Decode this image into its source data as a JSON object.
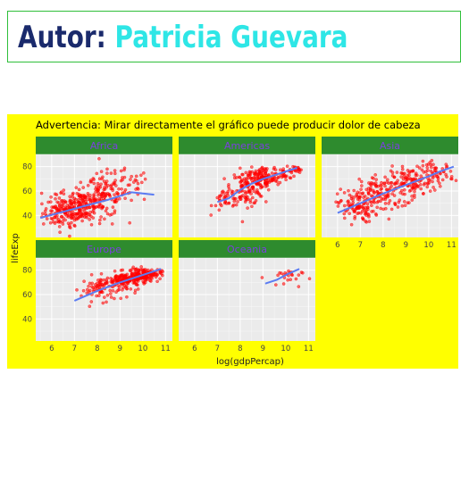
{
  "header": {
    "prefix": "Autor:",
    "name": "Patricia Guevara",
    "prefix_color": "#1a2a6c",
    "name_color": "#2ee6e6",
    "border_color": "#2fbf3a"
  },
  "chart_data": {
    "type": "scatter",
    "title": "Advertencia: Mirar directamente el gráfico puede producir dolor de cabeza",
    "xlabel": "log(gdpPercap)",
    "ylabel": "lifeExp",
    "xlim": [
      5.3,
      11.3
    ],
    "ylim": [
      22,
      90
    ],
    "x_ticks": [
      6,
      7,
      8,
      9,
      10,
      11
    ],
    "y_ticks": [
      40,
      60,
      80
    ],
    "grid": true,
    "background_color": "#ffff00",
    "panel_color": "#ebebeb",
    "strip_color": "#2e8b2e",
    "strip_text_color": "#7b3fe0",
    "point_color": "#ff0000",
    "smooth_color": "#5b7cf2",
    "series": [
      {
        "name": "Africa",
        "smooth": [
          [
            5.5,
            38
          ],
          [
            6.5,
            43
          ],
          [
            7.5,
            48
          ],
          [
            8.5,
            53
          ],
          [
            9.5,
            59
          ],
          [
            10.5,
            57
          ]
        ],
        "clusters": [
          {
            "x": 6.5,
            "y": 42,
            "sx": 0.45,
            "sy": 6,
            "n": 110
          },
          {
            "x": 7.3,
            "y": 49,
            "sx": 0.5,
            "sy": 8,
            "n": 170
          },
          {
            "x": 8.3,
            "y": 57,
            "sx": 0.5,
            "sy": 9,
            "n": 110
          },
          {
            "x": 9.4,
            "y": 64,
            "sx": 0.45,
            "sy": 7,
            "n": 35
          }
        ]
      },
      {
        "name": "Americas",
        "smooth": [
          [
            7.0,
            51
          ],
          [
            7.5,
            54
          ],
          [
            8.0,
            61
          ],
          [
            8.5,
            66
          ],
          [
            9.0,
            70
          ],
          [
            9.5,
            73
          ],
          [
            10.5,
            79
          ]
        ],
        "clusters": [
          {
            "x": 7.4,
            "y": 53,
            "sx": 0.3,
            "sy": 5,
            "n": 40
          },
          {
            "x": 8.3,
            "y": 63,
            "sx": 0.35,
            "sy": 7,
            "n": 110
          },
          {
            "x": 9.0,
            "y": 70,
            "sx": 0.35,
            "sy": 5,
            "n": 110
          },
          {
            "x": 9.9,
            "y": 75,
            "sx": 0.3,
            "sy": 3,
            "n": 40
          },
          {
            "x": 10.4,
            "y": 78,
            "sx": 0.15,
            "sy": 1.5,
            "n": 15
          }
        ]
      },
      {
        "name": "Asia",
        "smooth": [
          [
            6.0,
            42
          ],
          [
            7.0,
            50
          ],
          [
            8.0,
            58
          ],
          [
            9.0,
            65
          ],
          [
            10.0,
            72
          ],
          [
            10.5,
            76
          ],
          [
            11.1,
            80
          ]
        ],
        "clusters": [
          {
            "x": 6.8,
            "y": 48,
            "sx": 0.4,
            "sy": 7,
            "n": 110
          },
          {
            "x": 8.0,
            "y": 58,
            "sx": 0.5,
            "sy": 8,
            "n": 110
          },
          {
            "x": 9.2,
            "y": 67,
            "sx": 0.5,
            "sy": 6,
            "n": 100
          },
          {
            "x": 10.3,
            "y": 74,
            "sx": 0.4,
            "sy": 5,
            "n": 60
          }
        ]
      },
      {
        "name": "Europe",
        "smooth": [
          [
            7.0,
            55
          ],
          [
            8.0,
            63
          ],
          [
            9.0,
            70
          ],
          [
            10.0,
            76
          ],
          [
            10.8,
            81
          ]
        ],
        "clusters": [
          {
            "x": 8.3,
            "y": 65,
            "sx": 0.5,
            "sy": 5,
            "n": 90
          },
          {
            "x": 9.3,
            "y": 72,
            "sx": 0.45,
            "sy": 3,
            "n": 140
          },
          {
            "x": 10.1,
            "y": 77,
            "sx": 0.35,
            "sy": 2.2,
            "n": 130
          }
        ]
      },
      {
        "name": "Oceania",
        "smooth": [
          [
            9.1,
            69
          ],
          [
            9.6,
            72
          ],
          [
            10.1,
            77
          ],
          [
            10.6,
            81
          ]
        ],
        "clusters": [
          {
            "x": 9.9,
            "y": 74,
            "sx": 0.4,
            "sy": 3.5,
            "n": 24
          }
        ]
      }
    ]
  }
}
